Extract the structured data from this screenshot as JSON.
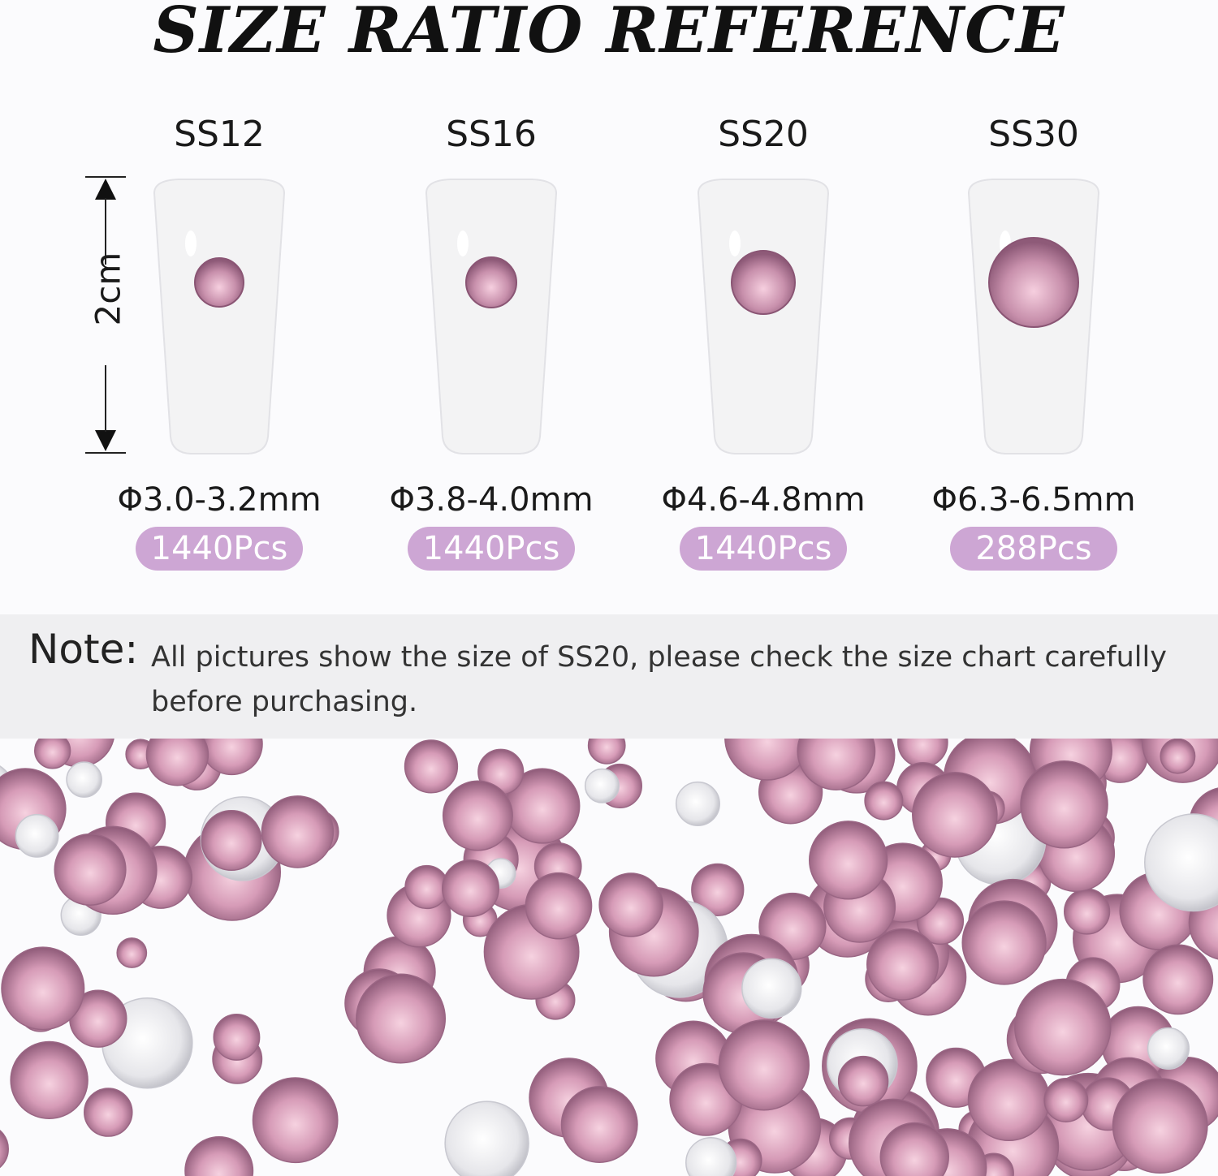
{
  "title": "SIZE RATIO REFERENCE",
  "height_label": "2cm",
  "sizes": [
    {
      "name": "SS12",
      "diameter": "Φ3.0-3.2mm",
      "count": "1440Pcs"
    },
    {
      "name": "SS16",
      "diameter": "Φ3.8-4.0mm",
      "count": "1440Pcs"
    },
    {
      "name": "SS20",
      "diameter": "Φ4.6-4.8mm",
      "count": "1440Pcs"
    },
    {
      "name": "SS30",
      "diameter": "Φ6.3-6.5mm",
      "count": "288Pcs"
    }
  ],
  "note": {
    "label": "Note:",
    "text": "All pictures show the size of SS20, please check the size chart carefully before purchasing."
  },
  "colors": {
    "pill": "#cda6d4",
    "gem": "#b07a98",
    "gem_light": "#f0c8d8"
  }
}
